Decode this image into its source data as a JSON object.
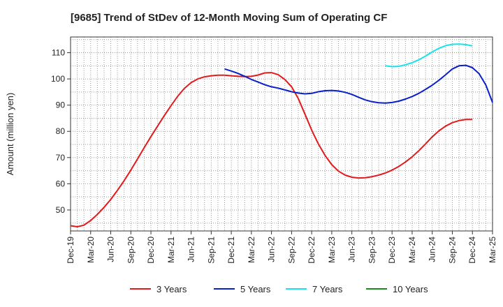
{
  "chart_data": {
    "type": "line",
    "title": "[9685]  Trend of StDev of 12-Month Moving Sum of Operating CF",
    "ylabel": "Amount (million yen)",
    "xlabel": "",
    "ylim": [
      42,
      116
    ],
    "yticks": [
      50,
      60,
      70,
      80,
      90,
      100,
      110
    ],
    "x_ticks": [
      "Dec-19",
      "Mar-20",
      "Jun-20",
      "Sep-20",
      "Dec-20",
      "Mar-21",
      "Jun-21",
      "Sep-21",
      "Dec-21",
      "Mar-22",
      "Jun-22",
      "Sep-22",
      "Dec-22",
      "Mar-23",
      "Jun-23",
      "Sep-23",
      "Dec-23",
      "Mar-24",
      "Jun-24",
      "Sep-24",
      "Dec-24",
      "Mar-25"
    ],
    "grid": true,
    "legend_position": "bottom",
    "series": [
      {
        "name": "3 Years",
        "color": "#e31a1c",
        "start": "Dec-19",
        "values": [
          44.0,
          43.6,
          44.2,
          46.0,
          48.3,
          51.0,
          54.0,
          57.5,
          61.2,
          65.2,
          69.5,
          73.8,
          78.0,
          82.0,
          86.0,
          89.8,
          93.4,
          96.4,
          98.6,
          100.0,
          100.8,
          101.2,
          101.4,
          101.4,
          101.2,
          101.0,
          100.9,
          101.0,
          101.5,
          102.3,
          102.4,
          101.6,
          99.8,
          97.0,
          92.5,
          86.5,
          80.5,
          75.2,
          70.8,
          67.3,
          64.8,
          63.3,
          62.5,
          62.2,
          62.3,
          62.7,
          63.3,
          64.1,
          65.2,
          66.6,
          68.3,
          70.3,
          72.6,
          75.2,
          77.9,
          80.2,
          82.0,
          83.3,
          84.1,
          84.5,
          84.5
        ]
      },
      {
        "name": "5 Years",
        "color": "#0a1fcc",
        "start": "Nov-21",
        "values": [
          103.8,
          103.0,
          102.1,
          101.0,
          99.8,
          98.8,
          97.8,
          97.0,
          96.5,
          95.8,
          95.1,
          94.6,
          94.3,
          94.5,
          95.1,
          95.5,
          95.6,
          95.4,
          94.9,
          94.1,
          93.0,
          92.0,
          91.3,
          90.9,
          90.8,
          91.0,
          91.5,
          92.3,
          93.3,
          94.5,
          96.0,
          97.6,
          99.5,
          101.6,
          103.8,
          105.0,
          105.2,
          104.3,
          102.0,
          97.7,
          91.0
        ]
      },
      {
        "name": "7 Years",
        "color": "#19e3e8",
        "start": "Nov-23",
        "values": [
          105.0,
          104.7,
          104.8,
          105.4,
          106.2,
          107.3,
          108.7,
          110.3,
          111.7,
          112.7,
          113.2,
          113.3,
          113.1,
          112.6
        ]
      },
      {
        "name": "10 Years",
        "color": "#1c8a1c",
        "start": "Dec-19",
        "values": []
      }
    ]
  }
}
